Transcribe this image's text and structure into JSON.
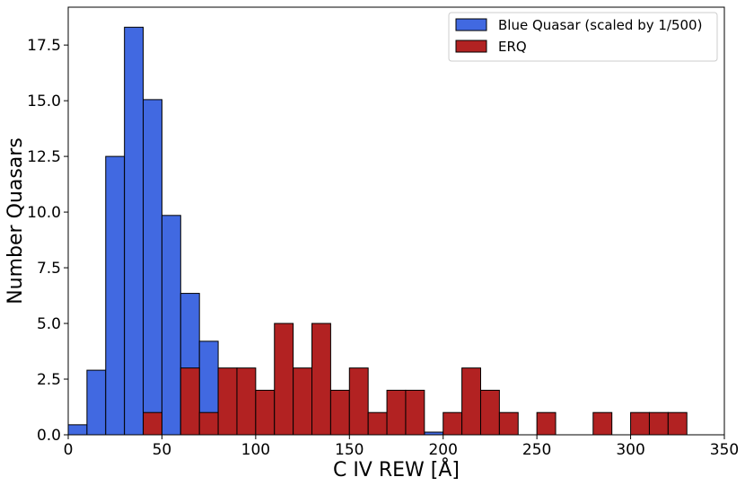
{
  "chart_data": {
    "type": "bar",
    "subtype": "overlaid-histogram",
    "title": "",
    "xlabel": "C IV REW [Å]",
    "ylabel": "Number Quasars",
    "xlim": [
      0,
      350
    ],
    "ylim": [
      0,
      19.2
    ],
    "xticks": [
      0,
      50,
      100,
      150,
      200,
      250,
      300,
      350
    ],
    "yticks": [
      0.0,
      2.5,
      5.0,
      7.5,
      10.0,
      12.5,
      15.0,
      17.5
    ],
    "xtick_labels": [
      "0",
      "50",
      "100",
      "150",
      "200",
      "250",
      "300",
      "350"
    ],
    "ytick_labels": [
      "0.0",
      "2.5",
      "5.0",
      "7.5",
      "10.0",
      "12.5",
      "15.0",
      "17.5"
    ],
    "grid": false,
    "legend_position": "top-right",
    "series": [
      {
        "name": "Blue Quasar (scaled by 1/500)",
        "color": "#4169e1",
        "bins": [
          [
            0,
            10,
            0.45
          ],
          [
            10,
            20,
            2.9
          ],
          [
            20,
            30,
            12.5
          ],
          [
            30,
            40,
            18.3
          ],
          [
            40,
            50,
            15.05
          ],
          [
            50,
            60,
            9.85
          ],
          [
            60,
            70,
            6.35
          ],
          [
            70,
            80,
            4.2
          ],
          [
            190,
            200,
            0.12
          ]
        ]
      },
      {
        "name": "ERQ",
        "color": "#b22222",
        "bins": [
          [
            40,
            50,
            1
          ],
          [
            60,
            70,
            3
          ],
          [
            70,
            80,
            1
          ],
          [
            80,
            90,
            3
          ],
          [
            90,
            100,
            3
          ],
          [
            100,
            110,
            2
          ],
          [
            110,
            120,
            5
          ],
          [
            120,
            130,
            3
          ],
          [
            130,
            140,
            5
          ],
          [
            140,
            150,
            2
          ],
          [
            150,
            160,
            3
          ],
          [
            160,
            170,
            1
          ],
          [
            170,
            180,
            2
          ],
          [
            180,
            190,
            2
          ],
          [
            200,
            210,
            1
          ],
          [
            210,
            220,
            3
          ],
          [
            220,
            230,
            2
          ],
          [
            230,
            240,
            1
          ],
          [
            250,
            260,
            1
          ],
          [
            280,
            290,
            1
          ],
          [
            300,
            310,
            1
          ],
          [
            310,
            320,
            1
          ],
          [
            320,
            330,
            1
          ]
        ]
      }
    ]
  }
}
